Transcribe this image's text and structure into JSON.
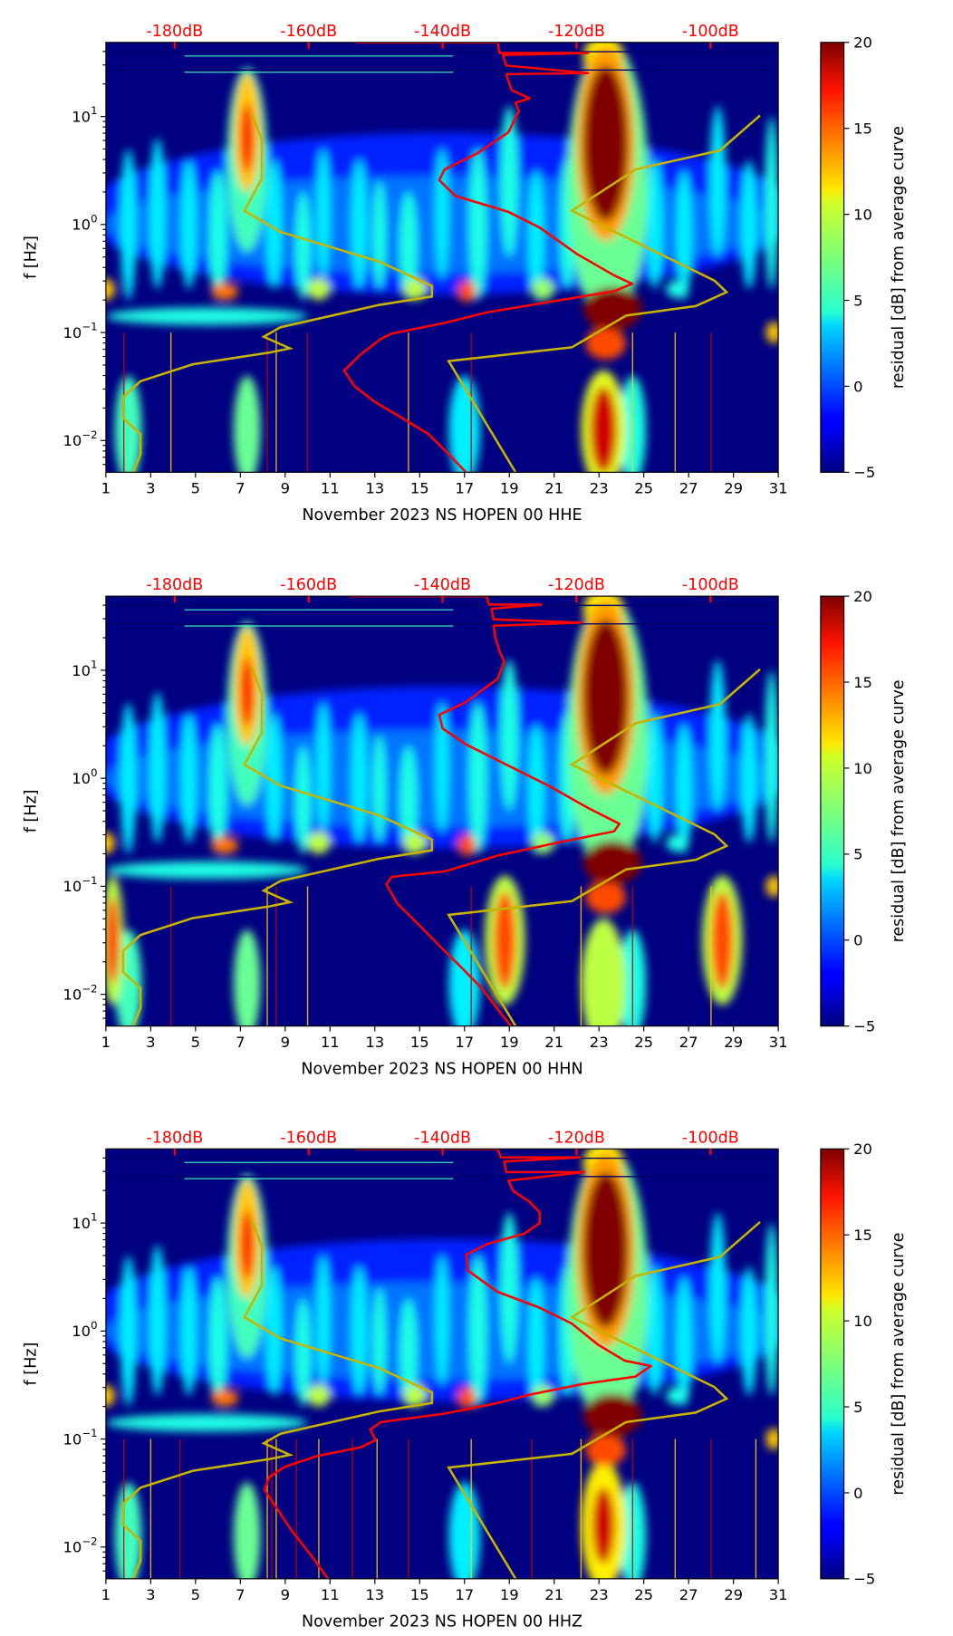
{
  "chart_data": {
    "type": "heatmap",
    "colorbar": {
      "label": "residual [dB] from average curve",
      "vmin": -5,
      "vmax": 20,
      "ticks": [
        -5,
        0,
        5,
        10,
        15,
        20
      ],
      "tick_labels": [
        "−5",
        "0",
        "5",
        "10",
        "15",
        "20"
      ],
      "colormap": "jet"
    },
    "x_axis": {
      "range": [
        1,
        31
      ],
      "ticks": [
        1,
        3,
        5,
        7,
        9,
        11,
        13,
        15,
        17,
        19,
        21,
        23,
        25,
        27,
        29,
        31
      ],
      "tick_labels": [
        "1",
        "3",
        "5",
        "7",
        "9",
        "11",
        "13",
        "15",
        "17",
        "19",
        "21",
        "23",
        "25",
        "27",
        "29",
        "31"
      ]
    },
    "y_axis": {
      "label": "f [Hz]",
      "scale": "log",
      "range_hz": [
        0.0051,
        48.5
      ],
      "ticks": [
        {
          "value": 10,
          "base": "10",
          "exp": "1"
        },
        {
          "value": 1,
          "base": "10",
          "exp": "0"
        },
        {
          "value": 0.1,
          "base": "10",
          "exp": "−1"
        },
        {
          "value": 0.01,
          "base": "10",
          "exp": "−2"
        }
      ]
    },
    "top_axis": {
      "unit": "dB",
      "ticks": [
        -180,
        -160,
        -140,
        -120,
        -100
      ],
      "tick_labels": [
        "-180dB",
        "-160dB",
        "-140dB",
        "-120dB",
        "-100dB"
      ],
      "color": "#ff0000"
    },
    "noise_models": {
      "color": "#c8b400",
      "low_noise_model_db_log10hz": [
        [
          -168.5,
          1.03
        ],
        [
          -167.0,
          0.784
        ],
        [
          -167.0,
          0.422
        ],
        [
          -169.6,
          0.127
        ],
        [
          -164.2,
          -0.069
        ],
        [
          -149.5,
          -0.343
        ],
        [
          -141.6,
          -0.569
        ],
        [
          -141.6,
          -0.667
        ],
        [
          -149.5,
          -0.745
        ],
        [
          -164.2,
          -0.951
        ],
        [
          -166.7,
          -1.039
        ],
        [
          -162.8,
          -1.147
        ],
        [
          -165.9,
          -1.186
        ],
        [
          -177.3,
          -1.294
        ],
        [
          -185.1,
          -1.451
        ],
        [
          -187.7,
          -1.598
        ],
        [
          -187.7,
          -1.794
        ],
        [
          -185.1,
          -1.941
        ],
        [
          -185.1,
          -2.127
        ],
        [
          -186.2,
          -2.294
        ]
      ],
      "high_noise_model_db_log10hz": [
        [
          -92.6,
          1.01
        ],
        [
          -98.6,
          0.686
        ],
        [
          -111.2,
          0.51
        ],
        [
          -120.7,
          0.127
        ],
        [
          -99.4,
          -0.52
        ],
        [
          -97.6,
          -0.627
        ],
        [
          -102.2,
          -0.755
        ],
        [
          -112.6,
          -0.843
        ],
        [
          -120.7,
          -1.137
        ],
        [
          -139.1,
          -1.265
        ],
        [
          -129.1,
          -2.294
        ]
      ]
    },
    "background_value": -5,
    "common_features": [
      {
        "day": 16,
        "logf": 0.1,
        "rday": 16,
        "rlogf": 0.75,
        "value": -1
      },
      {
        "day": 16,
        "logf": 0.0,
        "rday": 15,
        "rlogf": 0.45,
        "value": 1
      },
      {
        "day": 2,
        "logf": 0.0,
        "rday": 0.35,
        "rlogf": 0.7,
        "value": 4
      },
      {
        "day": 3.3,
        "logf": 0.1,
        "rday": 0.35,
        "rlogf": 0.7,
        "value": 4
      },
      {
        "day": 4.7,
        "logf": 0.0,
        "rday": 0.35,
        "rlogf": 0.6,
        "value": 4
      },
      {
        "day": 6.0,
        "logf": -0.1,
        "rday": 0.4,
        "rlogf": 0.6,
        "value": 5
      },
      {
        "day": 8.5,
        "logf": 0.0,
        "rday": 0.35,
        "rlogf": 0.6,
        "value": 4
      },
      {
        "day": 9.8,
        "logf": -0.2,
        "rday": 0.35,
        "rlogf": 0.5,
        "value": 5
      },
      {
        "day": 10.7,
        "logf": 0.1,
        "rday": 0.3,
        "rlogf": 0.6,
        "value": 4
      },
      {
        "day": 12.3,
        "logf": 0.0,
        "rday": 0.35,
        "rlogf": 0.6,
        "value": 4
      },
      {
        "day": 13.2,
        "logf": -0.1,
        "rday": 0.3,
        "rlogf": 0.5,
        "value": 5
      },
      {
        "day": 14.5,
        "logf": -0.2,
        "rday": 0.4,
        "rlogf": 0.5,
        "value": 5
      },
      {
        "day": 16.0,
        "logf": 0.1,
        "rday": 0.3,
        "rlogf": 0.6,
        "value": 4
      },
      {
        "day": 17.6,
        "logf": 0.0,
        "rday": 0.4,
        "rlogf": 0.7,
        "value": 5
      },
      {
        "day": 19.0,
        "logf": 0.4,
        "rday": 0.4,
        "rlogf": 0.7,
        "value": 5
      },
      {
        "day": 20.2,
        "logf": -0.1,
        "rday": 0.35,
        "rlogf": 0.6,
        "value": 4
      },
      {
        "day": 21.6,
        "logf": 0.0,
        "rday": 0.35,
        "rlogf": 0.6,
        "value": 5
      },
      {
        "day": 25.5,
        "logf": 0.0,
        "rday": 0.35,
        "rlogf": 0.6,
        "value": 4
      },
      {
        "day": 26.8,
        "logf": -0.1,
        "rday": 0.35,
        "rlogf": 0.6,
        "value": 4
      },
      {
        "day": 28.3,
        "logf": 0.4,
        "rday": 0.35,
        "rlogf": 0.7,
        "value": 4
      },
      {
        "day": 29.7,
        "logf": 0.0,
        "rday": 0.35,
        "rlogf": 0.6,
        "value": 4
      },
      {
        "day": 30.7,
        "logf": 0.2,
        "rday": 0.3,
        "rlogf": 0.8,
        "value": 5
      },
      {
        "day": 5.5,
        "logf": -0.85,
        "rday": 4.5,
        "rlogf": 0.08,
        "value": 5
      },
      {
        "day": 1.0,
        "logf": -0.6,
        "rday": 0.4,
        "rlogf": 0.1,
        "value": 12
      },
      {
        "day": 6.3,
        "logf": -0.62,
        "rday": 0.6,
        "rlogf": 0.08,
        "value": 14
      },
      {
        "day": 10.5,
        "logf": -0.6,
        "rday": 0.5,
        "rlogf": 0.1,
        "value": 9
      },
      {
        "day": 14.8,
        "logf": -0.6,
        "rday": 0.5,
        "rlogf": 0.1,
        "value": 9
      },
      {
        "day": 17.1,
        "logf": -0.62,
        "rday": 0.4,
        "rlogf": 0.1,
        "value": 15
      },
      {
        "day": 20.5,
        "logf": -0.6,
        "rday": 0.5,
        "rlogf": 0.1,
        "value": 8
      },
      {
        "day": 26.5,
        "logf": -0.6,
        "rday": 0.5,
        "rlogf": 0.08,
        "value": 5
      },
      {
        "day": 30.8,
        "logf": -1.0,
        "rday": 0.35,
        "rlogf": 0.1,
        "value": 12
      },
      {
        "day": 7.3,
        "logf": 0.6,
        "rday": 0.9,
        "rlogf": 0.85,
        "value": 6
      },
      {
        "day": 7.3,
        "logf": 0.85,
        "rday": 0.6,
        "rlogf": 0.55,
        "value": 12
      },
      {
        "day": 7.3,
        "logf": 0.8,
        "rday": 0.3,
        "rlogf": 0.32,
        "value": 17
      },
      {
        "day": 23.4,
        "logf": 0.4,
        "rday": 1.8,
        "rlogf": 1.3,
        "value": 7
      },
      {
        "day": 23.3,
        "logf": 0.75,
        "rday": 1.3,
        "rlogf": 0.9,
        "value": 13
      },
      {
        "day": 23.3,
        "logf": 0.75,
        "rday": 1.0,
        "rlogf": 0.72,
        "value": 20
      },
      {
        "day": 23.2,
        "logf": 1.55,
        "rday": 0.9,
        "rlogf": 0.2,
        "value": 11
      },
      {
        "day": 23.6,
        "logf": -0.78,
        "rday": 1.3,
        "rlogf": 0.2,
        "value": 20
      },
      {
        "day": 23.3,
        "logf": -1.1,
        "rday": 0.9,
        "rlogf": 0.15,
        "value": 15
      },
      {
        "day": 2.0,
        "logf": -1.9,
        "rday": 0.6,
        "rlogf": 0.5,
        "value": 6
      },
      {
        "day": 7.3,
        "logf": -1.9,
        "rday": 0.6,
        "rlogf": 0.5,
        "value": 7
      },
      {
        "day": 17.0,
        "logf": -1.9,
        "rday": 0.7,
        "rlogf": 0.5,
        "value": 4
      },
      {
        "day": 24.5,
        "logf": -1.9,
        "rday": 0.6,
        "rlogf": 0.5,
        "value": 5
      }
    ],
    "panels": [
      {
        "xlabel": "November 2023 NS HOPEN 00 HHE",
        "extra_features": [
          {
            "day": 23.2,
            "logf": -1.9,
            "rday": 1.0,
            "rlogf": 0.55,
            "value": 10
          },
          {
            "day": 23.2,
            "logf": -1.9,
            "rday": 0.6,
            "rlogf": 0.4,
            "value": 18
          }
        ],
        "spike_days": [
          1.8,
          3.9,
          8.2,
          8.6,
          10.0,
          14.5,
          17.3,
          26.4,
          28.0,
          24.5
        ],
        "median_psd_db_log10hz": [
          [
            -153.1,
            1.686
          ],
          [
            -131.8,
            1.686
          ],
          [
            -131.5,
            1.588
          ],
          [
            -118.3,
            1.588
          ],
          [
            -131.0,
            1.569
          ],
          [
            -130.5,
            1.471
          ],
          [
            -118.3,
            1.402
          ],
          [
            -130.5,
            1.392
          ],
          [
            -129.7,
            1.245
          ],
          [
            -127.0,
            1.167
          ],
          [
            -129.1,
            1.127
          ],
          [
            -128.6,
            1.049
          ],
          [
            -130.2,
            0.853
          ],
          [
            -134.9,
            0.657
          ],
          [
            -139.7,
            0.51
          ],
          [
            -140.5,
            0.412
          ],
          [
            -138.1,
            0.265
          ],
          [
            -130.2,
            0.118
          ],
          [
            -125.5,
            -0.029
          ],
          [
            -119.9,
            -0.275
          ],
          [
            -114.4,
            -0.471
          ],
          [
            -111.7,
            -0.549
          ],
          [
            -114.4,
            -0.618
          ],
          [
            -123.9,
            -0.716
          ],
          [
            -133.4,
            -0.814
          ],
          [
            -139.7,
            -0.912
          ],
          [
            -147.6,
            -1.01
          ],
          [
            -149.2,
            -1.059
          ],
          [
            -152.3,
            -1.206
          ],
          [
            -154.7,
            -1.353
          ],
          [
            -153.1,
            -1.5
          ],
          [
            -150.0,
            -1.647
          ],
          [
            -146.0,
            -1.794
          ],
          [
            -142.1,
            -1.941
          ],
          [
            -139.7,
            -2.088
          ],
          [
            -136.5,
            -2.294
          ]
        ]
      },
      {
        "xlabel": "November 2023 NS HOPEN 00 HHN",
        "extra_features": [
          {
            "day": 23.2,
            "logf": -1.9,
            "rday": 1.0,
            "rlogf": 0.6,
            "value": 9
          },
          {
            "day": 1.3,
            "logf": -1.5,
            "rday": 0.5,
            "rlogf": 0.6,
            "value": 9
          },
          {
            "day": 1.3,
            "logf": -1.5,
            "rday": 0.3,
            "rlogf": 0.4,
            "value": 16
          },
          {
            "day": 18.8,
            "logf": -1.5,
            "rday": 0.9,
            "rlogf": 0.6,
            "value": 9
          },
          {
            "day": 18.8,
            "logf": -1.5,
            "rday": 0.5,
            "rlogf": 0.45,
            "value": 15
          },
          {
            "day": 28.5,
            "logf": -1.5,
            "rday": 0.9,
            "rlogf": 0.6,
            "value": 9
          },
          {
            "day": 28.5,
            "logf": -1.5,
            "rday": 0.5,
            "rlogf": 0.45,
            "value": 15
          }
        ],
        "spike_days": [
          3.9,
          8.2,
          8.6,
          10.0,
          17.3,
          22.2,
          24.5,
          28.0
        ],
        "median_psd_db_log10hz": [
          [
            -153.9,
            1.686
          ],
          [
            -133.4,
            1.686
          ],
          [
            -133.1,
            1.608
          ],
          [
            -125.3,
            1.608
          ],
          [
            -132.7,
            1.569
          ],
          [
            -132.4,
            1.471
          ],
          [
            -119.3,
            1.441
          ],
          [
            -132.4,
            1.412
          ],
          [
            -132.1,
            1.294
          ],
          [
            -131.5,
            1.176
          ],
          [
            -130.8,
            1.078
          ],
          [
            -131.8,
            0.921
          ],
          [
            -136.5,
            0.706
          ],
          [
            -140.5,
            0.588
          ],
          [
            -140.0,
            0.461
          ],
          [
            -136.5,
            0.314
          ],
          [
            -130.2,
            0.118
          ],
          [
            -123.9,
            -0.078
          ],
          [
            -118.3,
            -0.275
          ],
          [
            -113.6,
            -0.422
          ],
          [
            -114.4,
            -0.491
          ],
          [
            -122.3,
            -0.589
          ],
          [
            -131.8,
            -0.716
          ],
          [
            -139.7,
            -0.863
          ],
          [
            -147.6,
            -0.912
          ],
          [
            -148.4,
            -0.981
          ],
          [
            -146.8,
            -1.157
          ],
          [
            -143.6,
            -1.353
          ],
          [
            -140.5,
            -1.549
          ],
          [
            -137.3,
            -1.745
          ],
          [
            -134.2,
            -1.941
          ],
          [
            -131.8,
            -2.137
          ],
          [
            -129.8,
            -2.294
          ]
        ]
      },
      {
        "xlabel": "November 2023 NS HOPEN 00 HHZ",
        "extra_features": [
          {
            "day": 23.2,
            "logf": -1.8,
            "rday": 1.0,
            "rlogf": 0.6,
            "value": 11
          },
          {
            "day": 23.2,
            "logf": -1.8,
            "rday": 0.5,
            "rlogf": 0.35,
            "value": 18
          }
        ],
        "spike_days": [
          1.8,
          3.0,
          4.3,
          8.2,
          8.4,
          8.6,
          9.5,
          10.5,
          12.0,
          13.1,
          14.5,
          17.3,
          20.0,
          22.2,
          24.5,
          26.4,
          28.0,
          30.0
        ],
        "median_psd_db_log10hz": [
          [
            -153.1,
            1.686
          ],
          [
            -131.8,
            1.686
          ],
          [
            -131.3,
            1.608
          ],
          [
            -119.5,
            1.608
          ],
          [
            -130.8,
            1.569
          ],
          [
            -130.5,
            1.471
          ],
          [
            -118.9,
            1.471
          ],
          [
            -130.2,
            1.392
          ],
          [
            -129.4,
            1.294
          ],
          [
            -127.0,
            1.196
          ],
          [
            -125.5,
            1.098
          ],
          [
            -125.5,
            1.0
          ],
          [
            -127.8,
            0.902
          ],
          [
            -133.4,
            0.804
          ],
          [
            -136.5,
            0.706
          ],
          [
            -136.2,
            0.559
          ],
          [
            -131.8,
            0.363
          ],
          [
            -125.5,
            0.216
          ],
          [
            -120.7,
            0.069
          ],
          [
            -116.8,
            -0.127
          ],
          [
            -112.8,
            -0.275
          ],
          [
            -108.9,
            -0.324
          ],
          [
            -111.2,
            -0.422
          ],
          [
            -119.1,
            -0.491
          ],
          [
            -127.0,
            -0.589
          ],
          [
            -131.8,
            -0.667
          ],
          [
            -139.7,
            -0.765
          ],
          [
            -149.2,
            -0.843
          ],
          [
            -150.8,
            -0.912
          ],
          [
            -150.0,
            -1.01
          ],
          [
            -152.3,
            -1.078
          ],
          [
            -158.7,
            -1.157
          ],
          [
            -163.5,
            -1.255
          ],
          [
            -165.9,
            -1.353
          ],
          [
            -166.6,
            -1.471
          ],
          [
            -164.7,
            -1.647
          ],
          [
            -162.6,
            -1.843
          ],
          [
            -159.5,
            -2.088
          ],
          [
            -157.1,
            -2.294
          ]
        ]
      }
    ],
    "median_color": "#ff0000"
  }
}
